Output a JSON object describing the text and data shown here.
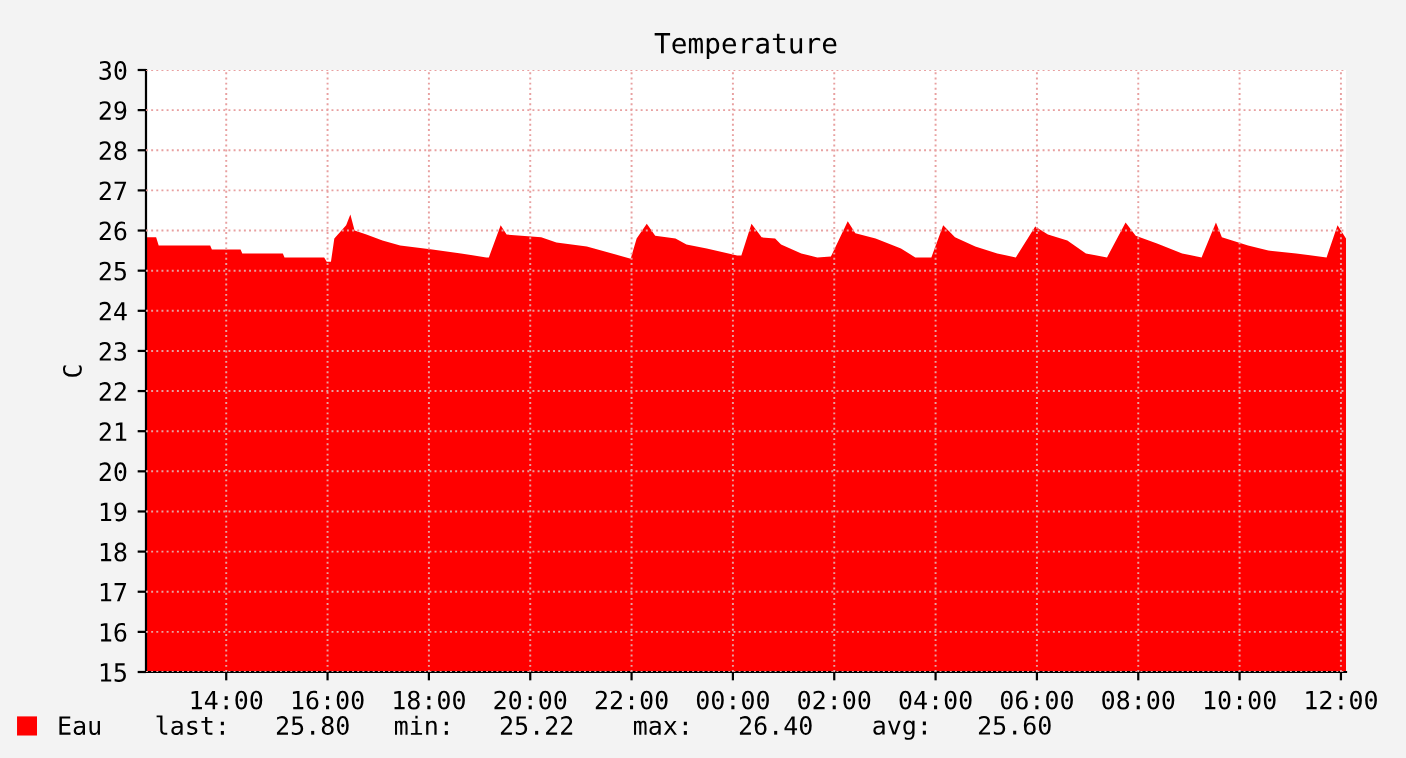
{
  "chart_data": {
    "type": "area",
    "title": "Temperature",
    "ylabel": "C",
    "x": [
      "2000-01-01T12:25",
      "2000-01-01T12:37",
      "2000-01-01T12:40",
      "2000-01-01T13:41",
      "2000-01-01T13:43",
      "2000-01-01T14:17",
      "2000-01-01T14:19",
      "2000-01-01T15:07",
      "2000-01-01T15:09",
      "2000-01-01T15:56",
      "2000-01-01T15:59",
      "2000-01-01T16:04",
      "2000-01-01T16:08",
      "2000-01-01T16:22",
      "2000-01-01T16:27",
      "2000-01-01T16:32",
      "2000-01-01T16:46",
      "2000-01-01T17:05",
      "2000-01-01T17:26",
      "2000-01-01T18:04",
      "2000-01-01T18:38",
      "2000-01-01T19:08",
      "2000-01-01T19:11",
      "2000-01-01T19:25",
      "2000-01-01T19:32",
      "2000-01-01T20:13",
      "2000-01-01T20:31",
      "2000-01-01T21:07",
      "2000-01-01T21:59",
      "2000-01-01T22:06",
      "2000-01-01T22:18",
      "2000-01-01T22:28",
      "2000-01-01T22:52",
      "2000-01-01T23:05",
      "2000-01-01T23:29",
      "2000-01-02T00:05",
      "2000-01-02T00:10",
      "2000-01-02T00:22",
      "2000-01-02T00:34",
      "2000-01-02T00:50",
      "2000-01-02T00:57",
      "2000-01-02T01:21",
      "2000-01-02T01:40",
      "2000-01-02T01:56",
      "2000-01-02T02:16",
      "2000-01-02T02:25",
      "2000-01-02T02:49",
      "2000-01-02T03:19",
      "2000-01-02T03:36",
      "2000-01-02T03:55",
      "2000-01-02T04:09",
      "2000-01-02T04:23",
      "2000-01-02T04:47",
      "2000-01-02T05:13",
      "2000-01-02T05:35",
      "2000-01-02T05:58",
      "2000-01-02T06:13",
      "2000-01-02T06:36",
      "2000-01-02T06:58",
      "2000-01-02T07:23",
      "2000-01-02T07:45",
      "2000-01-02T07:57",
      "2000-01-02T08:23",
      "2000-01-02T08:52",
      "2000-01-02T09:15",
      "2000-01-02T09:32",
      "2000-01-02T09:39",
      "2000-01-02T10:10",
      "2000-01-02T10:34",
      "2000-01-02T11:07",
      "2000-01-02T11:43",
      "2000-01-02T11:56",
      "2000-01-02T12:06"
    ],
    "series": [
      {
        "name": "Eau",
        "color": "#ff0000",
        "values": [
          25.83,
          25.83,
          25.63,
          25.63,
          25.53,
          25.53,
          25.43,
          25.43,
          25.33,
          25.33,
          25.22,
          25.22,
          25.8,
          26.13,
          26.4,
          26.0,
          25.9,
          25.75,
          25.63,
          25.53,
          25.43,
          25.33,
          25.33,
          26.13,
          25.9,
          25.83,
          25.7,
          25.6,
          25.3,
          25.8,
          26.17,
          25.87,
          25.8,
          25.65,
          25.55,
          25.38,
          25.38,
          26.17,
          25.83,
          25.8,
          25.65,
          25.43,
          25.33,
          25.35,
          26.23,
          25.93,
          25.8,
          25.55,
          25.33,
          25.33,
          26.13,
          25.83,
          25.6,
          25.43,
          25.33,
          26.1,
          25.9,
          25.75,
          25.43,
          25.33,
          26.2,
          25.87,
          25.67,
          25.43,
          25.33,
          26.2,
          25.83,
          25.63,
          25.5,
          25.43,
          25.33,
          26.13,
          25.8
        ]
      }
    ],
    "xlim": [
      "2000-01-01T12:25",
      "2000-01-02T12:06"
    ],
    "xticks": [
      {
        "value": "2000-01-01T14:00",
        "label": "14:00"
      },
      {
        "value": "2000-01-01T16:00",
        "label": "16:00"
      },
      {
        "value": "2000-01-01T18:00",
        "label": "18:00"
      },
      {
        "value": "2000-01-01T20:00",
        "label": "20:00"
      },
      {
        "value": "2000-01-01T22:00",
        "label": "22:00"
      },
      {
        "value": "2000-01-02T00:00",
        "label": "00:00"
      },
      {
        "value": "2000-01-02T02:00",
        "label": "02:00"
      },
      {
        "value": "2000-01-02T04:00",
        "label": "04:00"
      },
      {
        "value": "2000-01-02T06:00",
        "label": "06:00"
      },
      {
        "value": "2000-01-02T08:00",
        "label": "08:00"
      },
      {
        "value": "2000-01-02T10:00",
        "label": "10:00"
      },
      {
        "value": "2000-01-02T12:00",
        "label": "12:00"
      }
    ],
    "ylim": [
      15,
      30
    ],
    "yticks": [
      15,
      16,
      17,
      18,
      19,
      20,
      21,
      22,
      23,
      24,
      25,
      26,
      27,
      28,
      29,
      30
    ],
    "grid": true,
    "line_style": "dotted",
    "legend": "bottom left",
    "annotations": [
      "last:   25.80",
      "min:   25.22",
      "max:   26.40",
      "avg:   25.60"
    ]
  }
}
